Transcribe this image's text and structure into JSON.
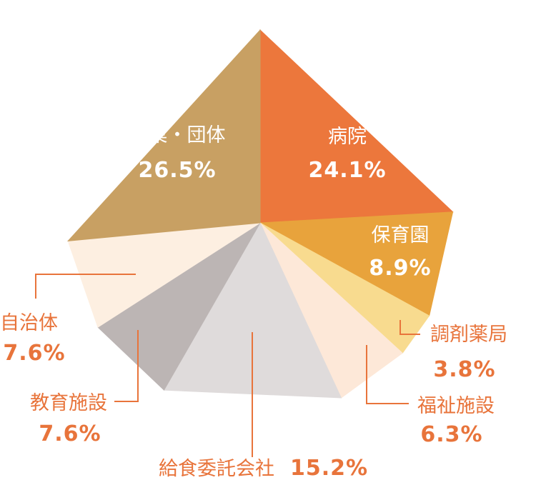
{
  "chart_data": {
    "type": "pie",
    "title": "",
    "start": "top, clockwise",
    "slices": [
      {
        "label": "病院",
        "value": 24.1,
        "value_text": "24.1%",
        "color": "#ec773c"
      },
      {
        "label": "保育園",
        "value": 8.9,
        "value_text": "8.9%",
        "color": "#e8a33c"
      },
      {
        "label": "調剤薬局",
        "value": 3.8,
        "value_text": "3.8%",
        "color": "#f8db8f"
      },
      {
        "label": "福祉施設",
        "value": 6.3,
        "value_text": "6.3%",
        "color": "#fde8d8"
      },
      {
        "label": "給食委託会社",
        "value": 15.2,
        "value_text": "15.2%",
        "color": "#dfdbdb"
      },
      {
        "label": "教育施設",
        "value": 7.6,
        "value_text": "7.6%",
        "color": "#bcb5b4"
      },
      {
        "label": "自治体",
        "value": 7.6,
        "value_text": "7.6%",
        "color": "#fdefe1"
      },
      {
        "label": "企業・団体",
        "value": 26.5,
        "value_text": "26.5%",
        "color": "#c8a063"
      }
    ],
    "label_color_outside": "#e8743b",
    "label_color_inside": "#ffffff"
  }
}
